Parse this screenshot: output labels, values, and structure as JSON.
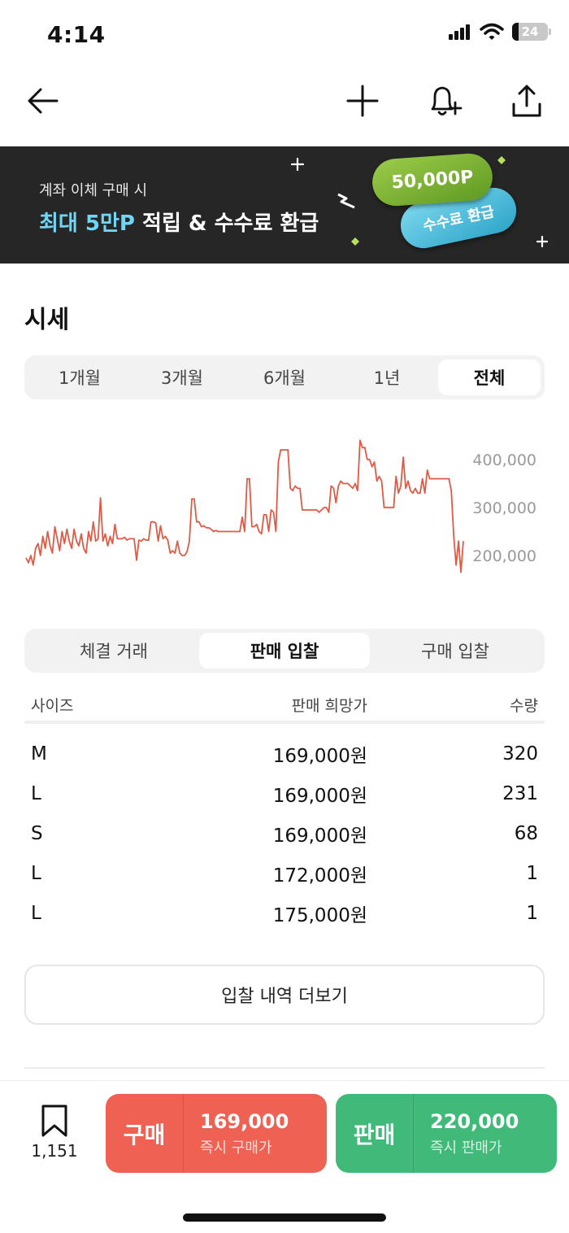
{
  "status_bar": {
    "time": "4:14",
    "battery": "24"
  },
  "nav": {
    "back_icon": "arrow-left-icon",
    "add_icon": "plus-icon",
    "alert_icon": "bell-plus-icon",
    "share_icon": "share-icon"
  },
  "banner": {
    "sub_text": "계좌 이체 구매 시",
    "main_highlight": "최대 5만P",
    "main_rest": " 적립 & 수수료 환급",
    "pill_green": "50,000P",
    "pill_blue": "수수료 환급",
    "colors": {
      "background": "#262626",
      "highlight": "#6fd7f5",
      "green": "#7cb342",
      "blue": "#4cc0e0"
    }
  },
  "price_section": {
    "title": "시세",
    "period_tabs": [
      "1개월",
      "3개월",
      "6개월",
      "1년",
      "전체"
    ],
    "active_period": "전체"
  },
  "chart_data": {
    "type": "line",
    "y_ticks": [
      "400,000",
      "300,000",
      "200,000"
    ],
    "ylim": [
      160000,
      440000
    ],
    "color": "#e05a45",
    "values": [
      195000,
      185000,
      200000,
      180000,
      215000,
      225000,
      200000,
      240000,
      215000,
      250000,
      220000,
      205000,
      260000,
      235000,
      210000,
      250000,
      225000,
      255000,
      230000,
      215000,
      255000,
      230000,
      220000,
      245000,
      215000,
      205000,
      250000,
      230000,
      270000,
      230000,
      235000,
      320000,
      230000,
      245000,
      220000,
      240000,
      225000,
      265000,
      235000,
      235000,
      235000,
      238000,
      232000,
      235000,
      235000,
      235000,
      190000,
      232000,
      230000,
      235000,
      232000,
      232000,
      270000,
      270000,
      268000,
      230000,
      262000,
      235000,
      240000,
      232000,
      205000,
      210000,
      205000,
      230000,
      205000,
      200000,
      200000,
      208000,
      230000,
      318000,
      318000,
      270000,
      270000,
      260000,
      262000,
      258000,
      258000,
      255000,
      250000,
      252000,
      250000,
      250000,
      250000,
      250000,
      250000,
      250000,
      250000,
      250000,
      250000,
      250000,
      280000,
      250000,
      360000,
      360000,
      260000,
      260000,
      265000,
      250000,
      245000,
      285000,
      285000,
      250000,
      295000,
      290000,
      250000,
      395000,
      420000,
      420000,
      420000,
      420000,
      340000,
      335000,
      345000,
      340000,
      340000,
      295000,
      295000,
      295000,
      295000,
      295000,
      295000,
      295000,
      290000,
      295000,
      300000,
      300000,
      290000,
      345000,
      340000,
      310000,
      345000,
      355000,
      350000,
      350000,
      350000,
      345000,
      340000,
      350000,
      335000,
      440000,
      425000,
      425000,
      400000,
      400000,
      385000,
      395000,
      355000,
      365000,
      355000,
      300000,
      300000,
      300000,
      300000,
      300000,
      365000,
      330000,
      345000,
      405000,
      340000,
      355000,
      335000,
      330000,
      340000,
      330000,
      330000,
      360000,
      330000,
      378000,
      360000,
      360000,
      360000,
      360000,
      360000,
      360000,
      360000,
      360000,
      360000,
      335000,
      240000,
      180000,
      230000,
      165000,
      230000
    ]
  },
  "trade_tabs": {
    "items": [
      "체결 거래",
      "판매 입찰",
      "구매 입찰"
    ],
    "active": "판매 입찰"
  },
  "bid_table": {
    "headers": {
      "size": "사이즈",
      "price": "판매 희망가",
      "qty": "수량"
    },
    "rows": [
      {
        "size": "M",
        "price": "169,000원",
        "qty": "320"
      },
      {
        "size": "L",
        "price": "169,000원",
        "qty": "231"
      },
      {
        "size": "S",
        "price": "169,000원",
        "qty": "68"
      },
      {
        "size": "L",
        "price": "172,000원",
        "qty": "1"
      },
      {
        "size": "L",
        "price": "175,000원",
        "qty": "1"
      }
    ]
  },
  "more_button": "입찰 내역 더보기",
  "bottom_bar": {
    "bookmark_icon": "bookmark-icon",
    "bookmark_count": "1,151",
    "buy": {
      "label": "구매",
      "price": "169,000",
      "sub": "즉시 구매가",
      "color": "#ef6253"
    },
    "sell": {
      "label": "판매",
      "price": "220,000",
      "sub": "즉시 판매가",
      "color": "#41b979"
    }
  }
}
